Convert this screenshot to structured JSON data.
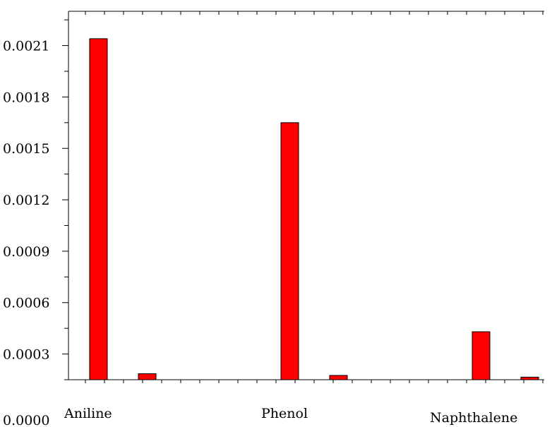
{
  "chart_data": {
    "type": "bar",
    "title": "",
    "xlabel": "",
    "ylabel": "",
    "categories": [
      "Aniline",
      "Phenol",
      "Naphthalene"
    ],
    "series": [
      {
        "color": "#ff0000",
        "values": [
          0.00214,
          0.00165,
          0.00043
        ]
      },
      {
        "color": "#ff0000",
        "values": [
          0.000185,
          0.000175,
          0.000165
        ]
      }
    ],
    "y_ticks": [
      "0.0000",
      "0.0003",
      "0.0006",
      "0.0009",
      "0.0012",
      "0.0015",
      "0.0018",
      "0.0021"
    ],
    "ylim": [
      0.00015,
      0.0023
    ],
    "grid": false,
    "legend": "none"
  }
}
